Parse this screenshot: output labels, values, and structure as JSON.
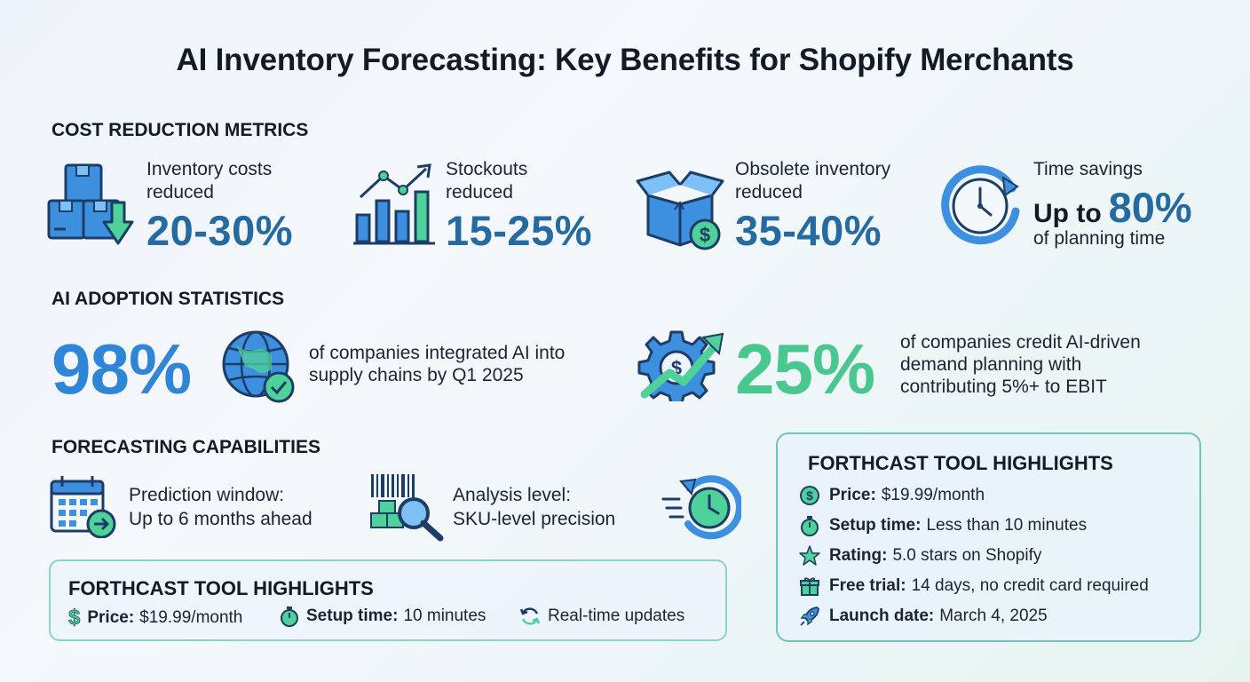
{
  "title": "AI Inventory Forecasting: Key Benefits for Shopify Merchants",
  "colors": {
    "blue": "#256aa0",
    "bright_blue": "#2f86d6",
    "green": "#3fc78e",
    "teal_border": "#8fd1c2"
  },
  "cost": {
    "heading": "COST REDUCTION METRICS",
    "items": [
      {
        "label": "Inventory costs reduced",
        "value": "20-30%",
        "icon": "boxes-down-arrow-icon"
      },
      {
        "label": "Stockouts reduced",
        "value": "15-25%",
        "icon": "bar-chart-trend-icon"
      },
      {
        "label": "Obsolete inventory reduced",
        "value": "35-40%",
        "icon": "open-box-dollar-icon"
      }
    ],
    "time": {
      "label": "Time savings",
      "prefix": "Up to",
      "value": "80%",
      "suffix": "of planning time",
      "icon": "clock-refresh-icon"
    }
  },
  "adoption": {
    "heading": "AI ADOPTION STATISTICS",
    "stat1": {
      "value": "98%",
      "text_line1": "of companies integrated AI into",
      "text_line2": "supply chains by Q1 2025",
      "icon": "globe-check-icon"
    },
    "stat2": {
      "value": "25%",
      "text_line1": "of companies credit AI-driven",
      "text_line2": "demand planning with",
      "text_line3": "contributing 5%+ to EBIT",
      "icon": "gear-dollar-growth-icon"
    }
  },
  "capabilities": {
    "heading": "FORECASTING CAPABILITIES",
    "prediction": {
      "line1": "Prediction window:",
      "line2": "Up to 6 months ahead",
      "icon": "calendar-arrow-icon"
    },
    "analysis": {
      "line1": "Analysis level:",
      "line2": "SKU-level precision",
      "icon": "barcode-magnifier-icon"
    },
    "speed_icon": "fast-clock-icon"
  },
  "small_box": {
    "heading": "FORTHCAST TOOL HIGHLIGHTS",
    "price_label": "Price:",
    "price_value": "$19.99/month",
    "setup_label": "Setup time:",
    "setup_value": "10 minutes",
    "updates": "Real-time updates"
  },
  "big_box": {
    "heading": "FORTHCAST TOOL HIGHLIGHTS",
    "items": [
      {
        "label": "Price:",
        "value": "$19.99/month",
        "icon": "dollar-coin-icon"
      },
      {
        "label": "Setup time:",
        "value": "Less than 10 minutes",
        "icon": "stopwatch-icon"
      },
      {
        "label": "Rating:",
        "value": "5.0 stars on Shopify",
        "icon": "star-icon"
      },
      {
        "label": "Free trial:",
        "value": "14 days, no credit card required",
        "icon": "gift-icon"
      },
      {
        "label": "Launch date:",
        "value": "March 4, 2025",
        "icon": "rocket-icon"
      }
    ]
  }
}
